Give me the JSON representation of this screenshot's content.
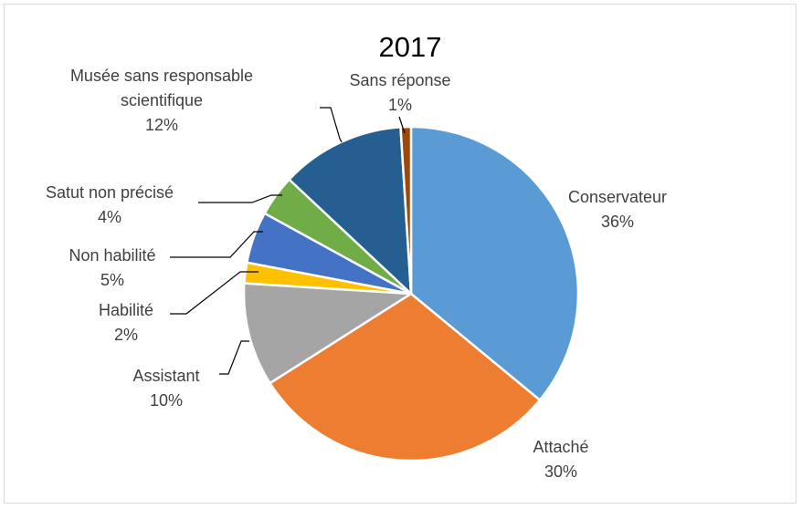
{
  "chart_data": {
    "type": "pie",
    "title": "2017",
    "start_angle_deg": 0,
    "direction": "clockwise",
    "slices": [
      {
        "category": "Conservateur",
        "value": 36,
        "label": "36%",
        "color": "#5B9BD5"
      },
      {
        "category": "Attaché",
        "value": 30,
        "label": "30%",
        "color": "#ED7D31"
      },
      {
        "category": "Assistant",
        "value": 10,
        "label": "10%",
        "color": "#A5A5A5"
      },
      {
        "category": "Habilité",
        "value": 2,
        "label": "2%",
        "color": "#FFC000"
      },
      {
        "category": "Non habilité",
        "value": 5,
        "label": "5%",
        "color": "#4472C4"
      },
      {
        "category": "Satut non précisé",
        "value": 4,
        "label": "4%",
        "color": "#70AD47"
      },
      {
        "category": "Musée sans responsable scientifique",
        "value": 12,
        "label": "12%",
        "color": "#255E91"
      },
      {
        "category": "Sans réponse",
        "value": 1,
        "label": "1%",
        "color": "#9E480E"
      }
    ],
    "legend": "none",
    "data_labels": "category and percentage, outside with leader lines"
  }
}
